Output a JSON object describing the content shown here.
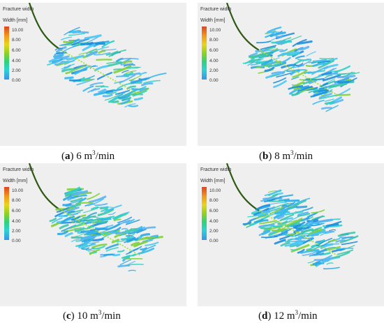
{
  "panel_title": "Fracture width",
  "colorbar": {
    "label": "Width [mm]",
    "ticks": [
      "10.00",
      "8.00",
      "6.00",
      "4.00",
      "2.00",
      "0.00"
    ],
    "colors": [
      "#e0441f",
      "#f29a1a",
      "#e8d51c",
      "#8fd21e",
      "#2fd27a",
      "#2ad3d6",
      "#3a93e8"
    ]
  },
  "panels": [
    {
      "letter": "a",
      "rate": "6",
      "unit": "m",
      "unit_exp": "3",
      "unit_rest": "/min"
    },
    {
      "letter": "b",
      "rate": "8",
      "unit": "m",
      "unit_exp": "3",
      "unit_rest": "/min"
    },
    {
      "letter": "c",
      "rate": "10",
      "unit": "m",
      "unit_exp": "3",
      "unit_rest": "/min"
    },
    {
      "letter": "d",
      "rate": "12",
      "unit": "m",
      "unit_exp": "3",
      "unit_rest": "/min"
    }
  ]
}
